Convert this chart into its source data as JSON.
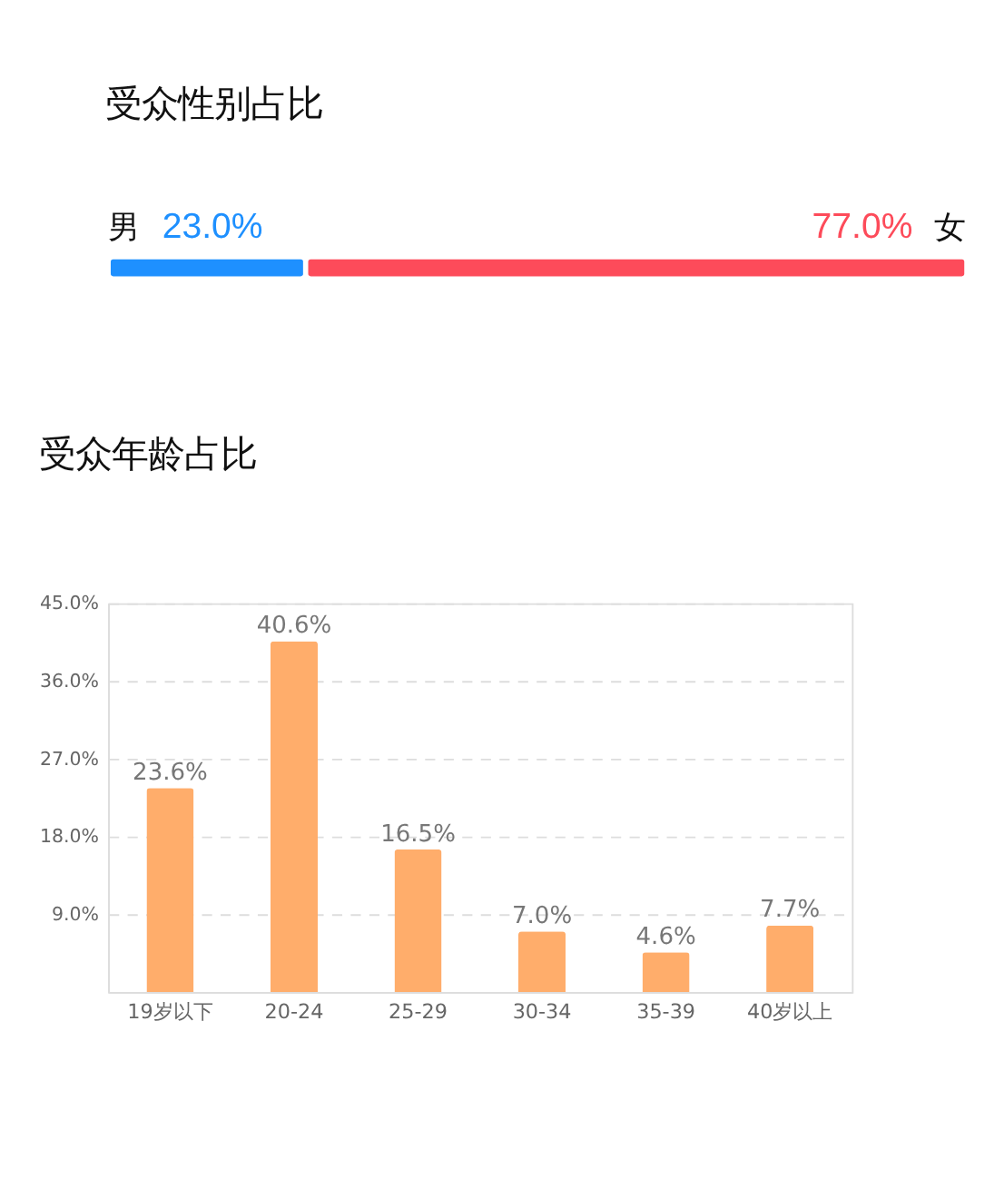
{
  "chart_data": [
    {
      "type": "bar",
      "title": "受众性别占比",
      "orientation": "horizontal",
      "stacked": true,
      "categories": [
        null
      ],
      "series": [
        {
          "name": "男",
          "color": "#1e90ff",
          "values": [
            23.0
          ],
          "value_labels": [
            "23.0%"
          ]
        },
        {
          "name": "女",
          "color": "#fd4b5a",
          "values": [
            77.0
          ],
          "value_labels": [
            "77.0%"
          ]
        }
      ]
    },
    {
      "type": "bar",
      "title": "受众年龄占比",
      "categories": [
        "19岁以下",
        "20-24",
        "25-29",
        "30-34",
        "35-39",
        "40岁以上"
      ],
      "values": [
        23.6,
        40.6,
        16.5,
        7.0,
        4.6,
        7.7
      ],
      "value_labels": [
        "23.6%",
        "40.6%",
        "16.5%",
        "7.0%",
        "4.6%",
        "7.7%"
      ],
      "color": "#ffad6b",
      "ylim": [
        0,
        45
      ],
      "yticks": [
        {
          "value": 9,
          "label": "9.0%"
        },
        {
          "value": 18,
          "label": "18.0%"
        },
        {
          "value": 27,
          "label": "27.0%"
        },
        {
          "value": 36,
          "label": "36.0%"
        },
        {
          "value": 45,
          "label": "45.0%"
        }
      ],
      "grid": "y",
      "line_style": "dashed"
    }
  ]
}
